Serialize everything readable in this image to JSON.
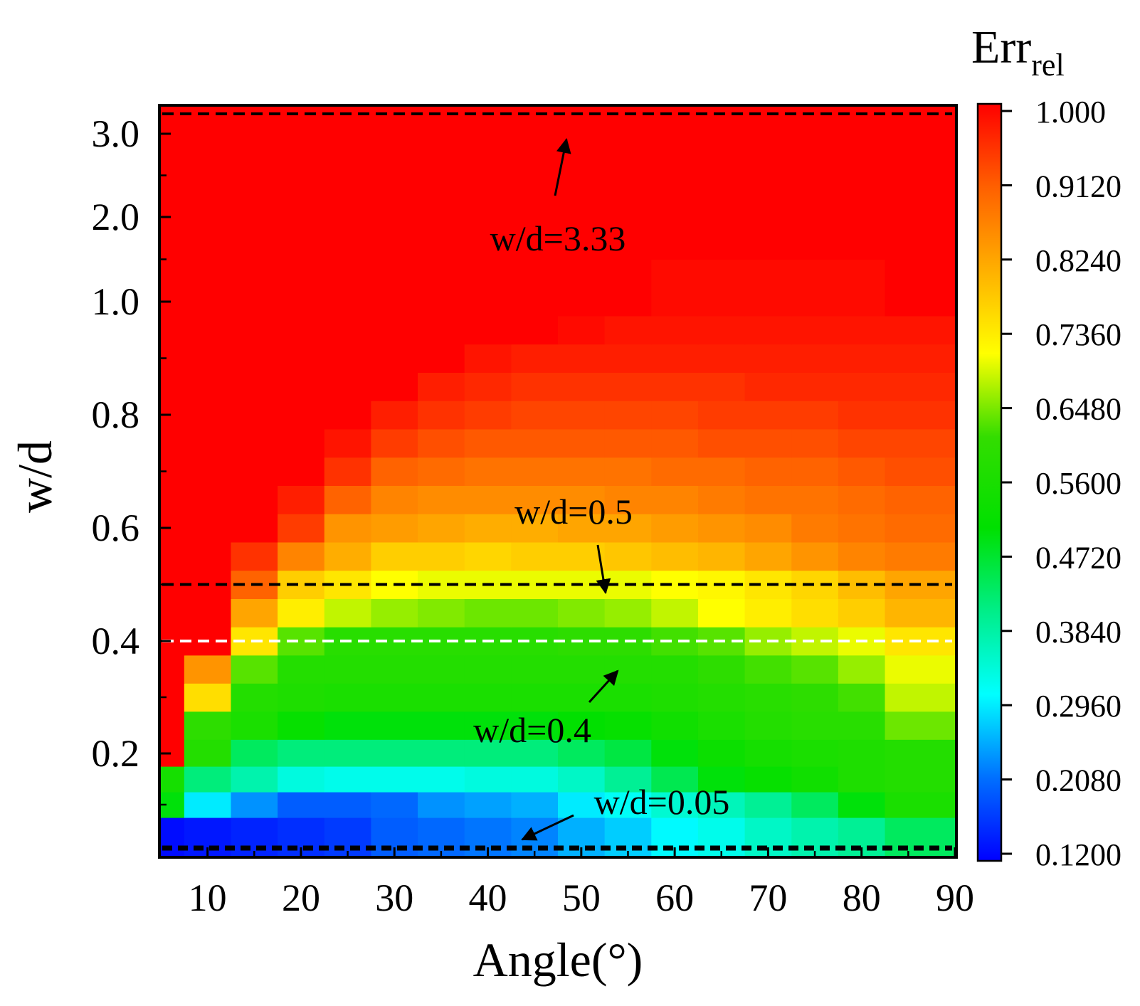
{
  "chart_data": {
    "type": "heatmap",
    "xlabel": "Angle(°)",
    "ylabel": "w/d",
    "x_ticks": [
      "10",
      "20",
      "30",
      "40",
      "50",
      "60",
      "70",
      "80",
      "90"
    ],
    "y_ticks": [
      "0.2",
      "0.4",
      "0.6",
      "0.8",
      "1.0",
      "2.0",
      "3.0"
    ],
    "colorbar": {
      "title_main": "Err",
      "title_sub": "rel",
      "ticks": [
        "1.000",
        "0.9120",
        "0.8240",
        "0.7360",
        "0.6480",
        "0.5600",
        "0.4720",
        "0.3840",
        "0.2960",
        "0.2080",
        "0.1200"
      ],
      "min": 0.12,
      "max": 1.0
    },
    "x_range": [
      5,
      90
    ],
    "angles": [
      5,
      10,
      15,
      20,
      25,
      30,
      35,
      40,
      45,
      50,
      55,
      60,
      65,
      70,
      75,
      80,
      85
    ],
    "w_d_rows": [
      0.05,
      0.1,
      0.15,
      0.2,
      0.25,
      0.3,
      0.35,
      0.4,
      0.45,
      0.5,
      0.55,
      0.6,
      0.65,
      0.7,
      0.75,
      0.8,
      0.85,
      0.9,
      0.95,
      1.0,
      2.0,
      3.0,
      3.33
    ],
    "values": [
      [
        0.13,
        0.14,
        0.15,
        0.16,
        0.17,
        0.2,
        0.21,
        0.22,
        0.23,
        0.26,
        0.28,
        0.31,
        0.33,
        0.36,
        0.38,
        0.4,
        0.44
      ],
      [
        0.5,
        0.3,
        0.24,
        0.2,
        0.2,
        0.21,
        0.24,
        0.25,
        0.26,
        0.3,
        0.32,
        0.35,
        0.37,
        0.4,
        0.44,
        0.5,
        0.56
      ],
      [
        0.55,
        0.42,
        0.38,
        0.34,
        0.33,
        0.33,
        0.33,
        0.34,
        0.34,
        0.36,
        0.4,
        0.45,
        0.5,
        0.52,
        0.54,
        0.57,
        0.58
      ],
      [
        1.0,
        0.58,
        0.44,
        0.42,
        0.42,
        0.42,
        0.42,
        0.42,
        0.42,
        0.44,
        0.46,
        0.5,
        0.53,
        0.55,
        0.56,
        0.57,
        0.58
      ],
      [
        1.0,
        0.6,
        0.56,
        0.52,
        0.5,
        0.5,
        0.5,
        0.5,
        0.5,
        0.51,
        0.52,
        0.54,
        0.56,
        0.58,
        0.59,
        0.59,
        0.64
      ],
      [
        1.0,
        0.75,
        0.58,
        0.57,
        0.56,
        0.56,
        0.56,
        0.56,
        0.56,
        0.56,
        0.56,
        0.57,
        0.58,
        0.59,
        0.6,
        0.62,
        0.68
      ],
      [
        1.0,
        0.84,
        0.63,
        0.58,
        0.58,
        0.58,
        0.58,
        0.58,
        0.58,
        0.58,
        0.58,
        0.58,
        0.6,
        0.62,
        0.63,
        0.66,
        0.7
      ],
      [
        1.0,
        1.0,
        0.74,
        0.63,
        0.59,
        0.59,
        0.59,
        0.59,
        0.59,
        0.6,
        0.6,
        0.62,
        0.63,
        0.66,
        0.68,
        0.7,
        0.74
      ],
      [
        1.0,
        1.0,
        0.82,
        0.73,
        0.68,
        0.66,
        0.65,
        0.64,
        0.64,
        0.65,
        0.66,
        0.68,
        0.71,
        0.73,
        0.75,
        0.77,
        0.8
      ],
      [
        1.0,
        1.0,
        0.9,
        0.77,
        0.74,
        0.71,
        0.7,
        0.7,
        0.7,
        0.7,
        0.7,
        0.71,
        0.72,
        0.74,
        0.76,
        0.79,
        0.82
      ],
      [
        1.0,
        1.0,
        0.95,
        0.86,
        0.81,
        0.77,
        0.77,
        0.76,
        0.77,
        0.77,
        0.78,
        0.79,
        0.8,
        0.82,
        0.84,
        0.86,
        0.87
      ],
      [
        1.0,
        1.0,
        1.0,
        0.94,
        0.84,
        0.83,
        0.82,
        0.81,
        0.81,
        0.82,
        0.82,
        0.83,
        0.84,
        0.85,
        0.87,
        0.88,
        0.89
      ],
      [
        1.0,
        1.0,
        1.0,
        0.97,
        0.9,
        0.86,
        0.85,
        0.85,
        0.85,
        0.85,
        0.86,
        0.86,
        0.87,
        0.88,
        0.88,
        0.89,
        0.9
      ],
      [
        1.0,
        1.0,
        1.0,
        1.0,
        0.95,
        0.9,
        0.89,
        0.88,
        0.88,
        0.88,
        0.88,
        0.89,
        0.89,
        0.9,
        0.9,
        0.91,
        0.92
      ],
      [
        1.0,
        1.0,
        1.0,
        1.0,
        0.98,
        0.94,
        0.92,
        0.91,
        0.91,
        0.91,
        0.91,
        0.91,
        0.92,
        0.92,
        0.92,
        0.93,
        0.93
      ],
      [
        1.0,
        1.0,
        1.0,
        1.0,
        1.0,
        0.97,
        0.95,
        0.94,
        0.93,
        0.93,
        0.93,
        0.93,
        0.94,
        0.94,
        0.94,
        0.95,
        0.95
      ],
      [
        1.0,
        1.0,
        1.0,
        1.0,
        1.0,
        1.0,
        0.97,
        0.96,
        0.95,
        0.95,
        0.95,
        0.95,
        0.95,
        0.96,
        0.96,
        0.96,
        0.96
      ],
      [
        1.0,
        1.0,
        1.0,
        1.0,
        1.0,
        1.0,
        1.0,
        0.98,
        0.97,
        0.97,
        0.97,
        0.97,
        0.97,
        0.97,
        0.97,
        0.97,
        0.97
      ],
      [
        1.0,
        1.0,
        1.0,
        1.0,
        1.0,
        1.0,
        1.0,
        1.0,
        1.0,
        0.99,
        0.98,
        0.98,
        0.98,
        0.98,
        0.98,
        0.98,
        0.98
      ],
      [
        1.0,
        1.0,
        1.0,
        1.0,
        1.0,
        1.0,
        1.0,
        1.0,
        1.0,
        1.0,
        1.0,
        0.99,
        0.99,
        0.99,
        0.99,
        0.99,
        1.0
      ],
      [
        1.0,
        1.0,
        1.0,
        1.0,
        1.0,
        1.0,
        1.0,
        1.0,
        1.0,
        1.0,
        1.0,
        1.0,
        1.0,
        1.0,
        1.0,
        1.0,
        1.0
      ],
      [
        1.0,
        1.0,
        1.0,
        1.0,
        1.0,
        1.0,
        1.0,
        1.0,
        1.0,
        1.0,
        1.0,
        1.0,
        1.0,
        1.0,
        1.0,
        1.0,
        1.0
      ],
      [
        1.0,
        1.0,
        1.0,
        1.0,
        1.0,
        1.0,
        1.0,
        1.0,
        1.0,
        1.0,
        1.0,
        1.0,
        1.0,
        1.0,
        1.0,
        1.0,
        1.0
      ]
    ],
    "reference_lines": [
      {
        "name": "line-3-33",
        "w_d": 3.33,
        "color": "#000000"
      },
      {
        "name": "line-0-5",
        "w_d": 0.5,
        "color": "#000000"
      },
      {
        "name": "line-0-4",
        "w_d": 0.4,
        "color": "#ffffff"
      },
      {
        "name": "line-0-05",
        "w_d": 0.05,
        "color": "#000000"
      }
    ],
    "annotations": [
      {
        "name": "annotation-3-33",
        "text": "w/d=3.33"
      },
      {
        "name": "annotation-0-5",
        "text": "w/d=0.5"
      },
      {
        "name": "annotation-0-4",
        "text": "w/d=0.4"
      },
      {
        "name": "annotation-0-05",
        "text": "w/d=0.05"
      }
    ]
  }
}
